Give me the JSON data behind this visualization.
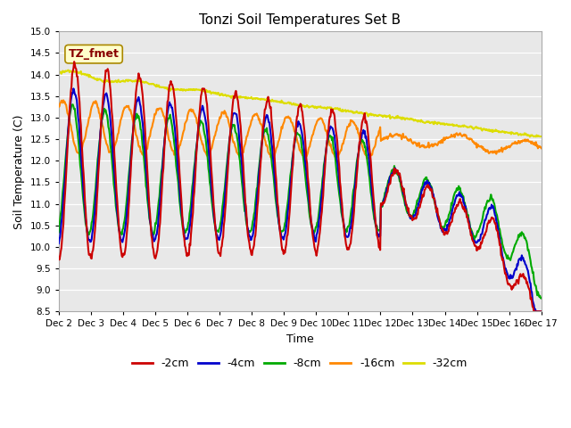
{
  "title": "Tonzi Soil Temperatures Set B",
  "xlabel": "Time",
  "ylabel": "Soil Temperature (C)",
  "ylim": [
    8.5,
    15.0
  ],
  "yticks": [
    8.5,
    9.0,
    9.5,
    10.0,
    10.5,
    11.0,
    11.5,
    12.0,
    12.5,
    13.0,
    13.5,
    14.0,
    14.5,
    15.0
  ],
  "colors": {
    "-2cm": "#cc0000",
    "-4cm": "#0000cc",
    "-8cm": "#00aa00",
    "-16cm": "#ff8800",
    "-32cm": "#dddd00"
  },
  "legend_label": "TZ_fmet",
  "legend_box_facecolor": "#ffffcc",
  "legend_box_edgecolor": "#aa8800",
  "legend_text_color": "#880000",
  "plot_bg_color": "#e8e8e8",
  "grid_color": "#ffffff",
  "n_points": 720,
  "x_tick_labels": [
    "Dec 2",
    "Dec 3",
    "Dec 4",
    "Dec 5",
    "Dec 6",
    "Dec 7",
    "Dec 8",
    "Dec 9",
    "Dec 10",
    "Dec 11",
    "Dec 12",
    "Dec 13",
    "Dec 14",
    "Dec 15",
    "Dec 16",
    "Dec 17"
  ],
  "x_tick_positions": [
    0,
    48,
    96,
    144,
    192,
    240,
    288,
    336,
    384,
    432,
    480,
    528,
    576,
    624,
    672,
    720
  ]
}
